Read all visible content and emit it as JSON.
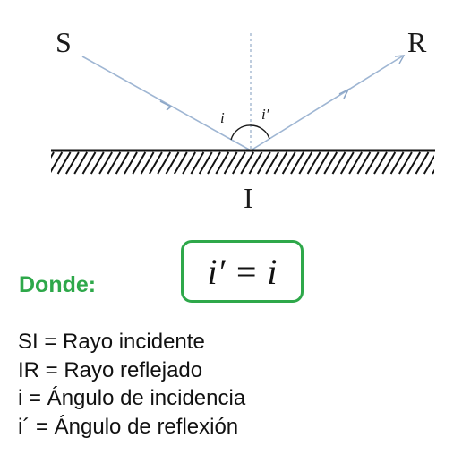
{
  "diagram": {
    "labels": {
      "source": "S",
      "reflected": "R",
      "incidence_point": "I",
      "angle_incidence": "i",
      "angle_reflection": "i′"
    },
    "colors": {
      "ray": "#9fb6d3",
      "normal": "#7f9bbd",
      "surface": "#111111",
      "accent": "#2ea84a"
    }
  },
  "formula": {
    "text": "i′ = i"
  },
  "donde_label": "Donde:",
  "legend": [
    "SI = Rayo incidente",
    "IR = Rayo reflejado",
    "i = Ángulo de incidencia",
    "i´ = Ángulo de reflexión"
  ]
}
